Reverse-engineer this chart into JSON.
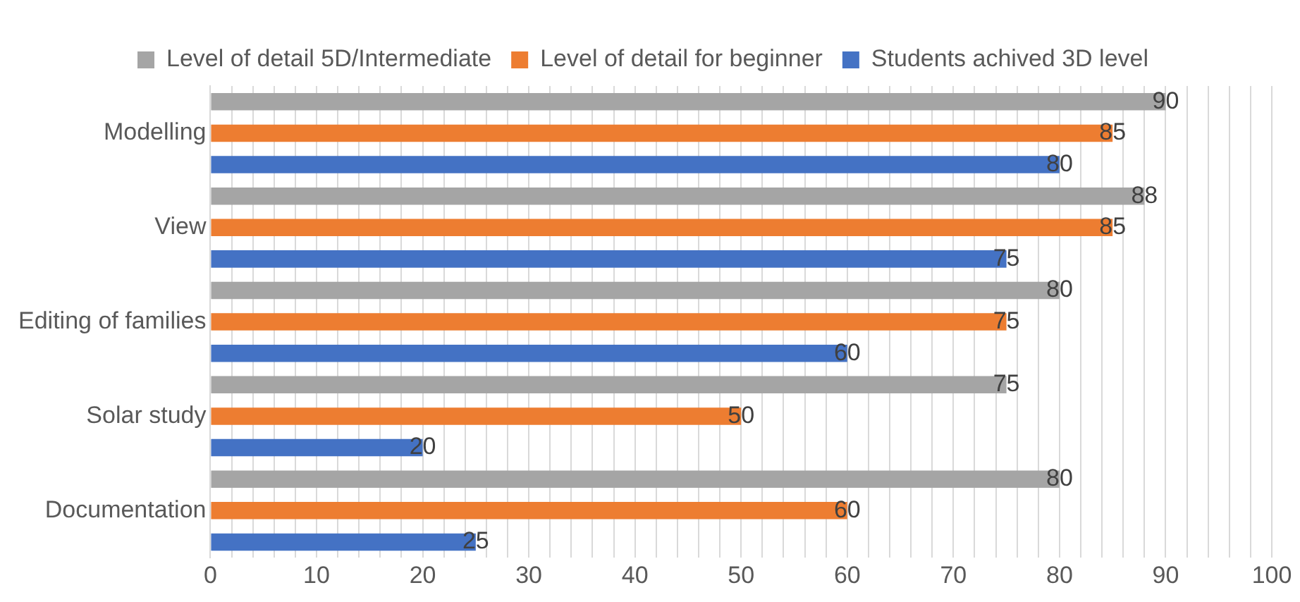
{
  "chart_data": {
    "type": "bar",
    "orientation": "horizontal",
    "categories": [
      "Modelling",
      "View",
      "Editing of families",
      "Solar study",
      "Documentation"
    ],
    "series": [
      {
        "name": "Level of detail 5D/Intermediate",
        "color": "#a5a5a5",
        "values": [
          90,
          88,
          80,
          75,
          80
        ]
      },
      {
        "name": "Level of detail for beginner",
        "color": "#ed7d31",
        "values": [
          85,
          85,
          75,
          50,
          60
        ]
      },
      {
        "name": "Students achived 3D level",
        "color": "#4472c4",
        "values": [
          80,
          75,
          60,
          20,
          25
        ]
      }
    ],
    "xlim": [
      0,
      100
    ],
    "xticks": [
      0,
      {
        "value": 2,
        "label": null
      },
      {
        "value": 4,
        "label": null
      },
      {
        "value": 6,
        "label": null
      },
      {
        "value": 8,
        "label": null
      },
      10,
      {
        "value": 12,
        "label": null
      },
      {
        "value": 14,
        "label": null
      },
      {
        "value": 16,
        "label": null
      },
      {
        "value": 18,
        "label": null
      },
      20,
      {
        "value": 22,
        "label": null
      },
      {
        "value": 24,
        "label": null
      },
      {
        "value": 26,
        "label": null
      },
      {
        "value": 28,
        "label": null
      },
      30,
      {
        "value": 32,
        "label": null
      },
      {
        "value": 34,
        "label": null
      },
      {
        "value": 36,
        "label": null
      },
      {
        "value": 38,
        "label": null
      },
      40,
      {
        "value": 42,
        "label": null
      },
      {
        "value": 44,
        "label": null
      },
      {
        "value": 46,
        "label": null
      },
      {
        "value": 48,
        "label": null
      },
      50,
      {
        "value": 52,
        "label": null
      },
      {
        "value": 54,
        "label": null
      },
      {
        "value": 56,
        "label": null
      },
      {
        "value": 58,
        "label": null
      },
      60,
      {
        "value": 62,
        "label": null
      },
      {
        "value": 64,
        "label": null
      },
      {
        "value": 66,
        "label": null
      },
      {
        "value": 68,
        "label": null
      },
      70,
      {
        "value": 72,
        "label": null
      },
      {
        "value": 74,
        "label": null
      },
      {
        "value": 76,
        "label": null
      },
      {
        "value": 78,
        "label": null
      },
      80,
      {
        "value": 82,
        "label": null
      },
      {
        "value": 84,
        "label": null
      },
      {
        "value": 86,
        "label": null
      },
      {
        "value": 88,
        "label": null
      },
      90,
      {
        "value": 92,
        "label": null
      },
      {
        "value": 94,
        "label": null
      },
      {
        "value": 96,
        "label": null
      },
      {
        "value": 98,
        "label": null
      },
      100
    ],
    "grid": "x",
    "legend": "top",
    "data_labels": true
  }
}
